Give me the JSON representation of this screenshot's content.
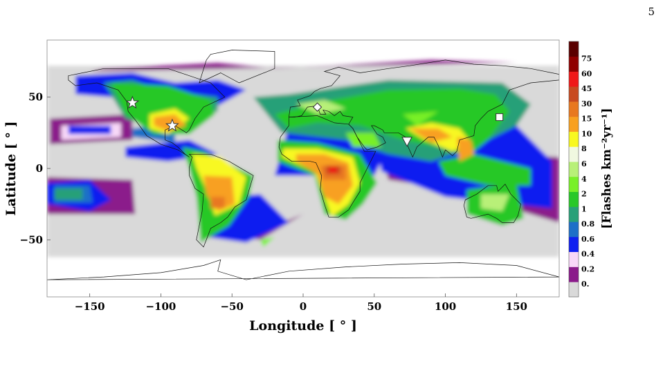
{
  "page_number": "5",
  "chart_data": {
    "type": "heatmap",
    "xlabel": "Longitude [ ° ]",
    "ylabel": "Latitude [ ° ]",
    "xlim": [
      -180,
      180
    ],
    "ylim": [
      -90,
      90
    ],
    "x_ticks": [
      -150,
      -100,
      -50,
      0,
      50,
      100,
      150
    ],
    "y_ticks": [
      -50,
      0,
      50
    ],
    "colorbar": {
      "label": "[Flashes km⁻²yr⁻¹]",
      "tick_labels": [
        "0.",
        "0.2",
        "0.4",
        "0.6",
        "0.8",
        "1",
        "2",
        "4",
        "6",
        "8",
        "10",
        "15",
        "30",
        "45",
        "60",
        "75"
      ],
      "colors": [
        "#d9d9d9",
        "#8b1a8b",
        "#f8d8f8",
        "#0f1ff0",
        "#1e6fc8",
        "#28a078",
        "#28c828",
        "#78f028",
        "#b8f078",
        "#f0f8e0",
        "#f8f820",
        "#f8a020",
        "#e87820",
        "#c84a20",
        "#f01818",
        "#900000",
        "#5a0000"
      ]
    },
    "markers": [
      {
        "shape": "star",
        "lon": -120,
        "lat": 46
      },
      {
        "shape": "star",
        "lon": -92,
        "lat": 30
      },
      {
        "shape": "diamond",
        "lon": 10,
        "lat": 43
      },
      {
        "shape": "triangle-down",
        "lon": 73,
        "lat": 19
      },
      {
        "shape": "square",
        "lon": 138,
        "lat": 36
      }
    ]
  }
}
